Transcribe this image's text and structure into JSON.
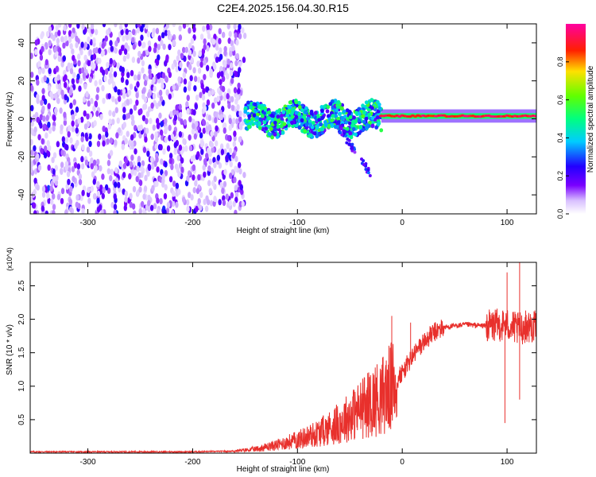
{
  "title": "C2E4.2025.156.04.30.R15",
  "chart_data": [
    {
      "type": "heatmap",
      "xlabel": "Height of straight line (km)",
      "ylabel": "Frequency (Hz)",
      "xlim": [
        -355,
        128
      ],
      "ylim": [
        -50,
        50
      ],
      "x_ticks": [
        -300,
        -200,
        -100,
        0,
        100
      ],
      "y_ticks": [
        -40,
        -20,
        0,
        20,
        40
      ],
      "colorbar": {
        "label": "Normalized spectral amplitude",
        "range": [
          0,
          1
        ],
        "ticks": [
          0.0,
          0.2,
          0.4,
          0.6,
          0.8
        ],
        "colormap": "rainbow (white-violet-blue-cyan-green-yellow-red-magenta)"
      },
      "regions": [
        {
          "x": [
            -355,
            -150
          ],
          "description_freq_range": [
            -50,
            50
          ],
          "amplitude": "low noise (0.0-0.3)"
        },
        {
          "x": [
            -150,
            -20
          ],
          "description_freq_range": [
            -10,
            10
          ],
          "amplitude": "moderate (0.2-0.6)"
        },
        {
          "x": [
            -20,
            128
          ],
          "description_freq_range": [
            0,
            3
          ],
          "amplitude": "high (0.7-1.0)",
          "center_freq": 1.5
        }
      ]
    },
    {
      "type": "line",
      "xlabel": "Height of straight line (km)",
      "ylabel": "SNR (10 * v/v)",
      "y_multiplier": "(x10^4)",
      "xlim": [
        -355,
        128
      ],
      "ylim": [
        0,
        2.85
      ],
      "x_ticks": [
        -300,
        -200,
        -100,
        0,
        100
      ],
      "y_ticks": [
        0.5,
        1.0,
        1.5,
        2.0,
        2.5
      ],
      "series": [
        {
          "color": "#e8302c",
          "x": [
            -355,
            -300,
            -250,
            -200,
            -160,
            -140,
            -120,
            -100,
            -80,
            -60,
            -40,
            -20,
            -10,
            0,
            10,
            20,
            30,
            40,
            60,
            80,
            100,
            110,
            120,
            128
          ],
          "y": [
            0.02,
            0.02,
            0.02,
            0.02,
            0.03,
            0.06,
            0.12,
            0.2,
            0.3,
            0.45,
            0.65,
            0.85,
            1.0,
            1.2,
            1.45,
            1.65,
            1.8,
            1.88,
            1.92,
            1.9,
            1.92,
            1.85,
            1.9,
            1.88
          ]
        }
      ],
      "spikes": [
        {
          "x": -10,
          "y": 2.05
        },
        {
          "x": 8,
          "y": 1.95
        },
        {
          "x": 98,
          "y": 0.45
        },
        {
          "x": 100,
          "y": 2.7
        },
        {
          "x": 112,
          "y": 2.85
        },
        {
          "x": 112,
          "y": 0.8
        }
      ]
    }
  ],
  "colors": {
    "line": "#e8302c",
    "axis": "#000000",
    "background": "#ffffff"
  }
}
